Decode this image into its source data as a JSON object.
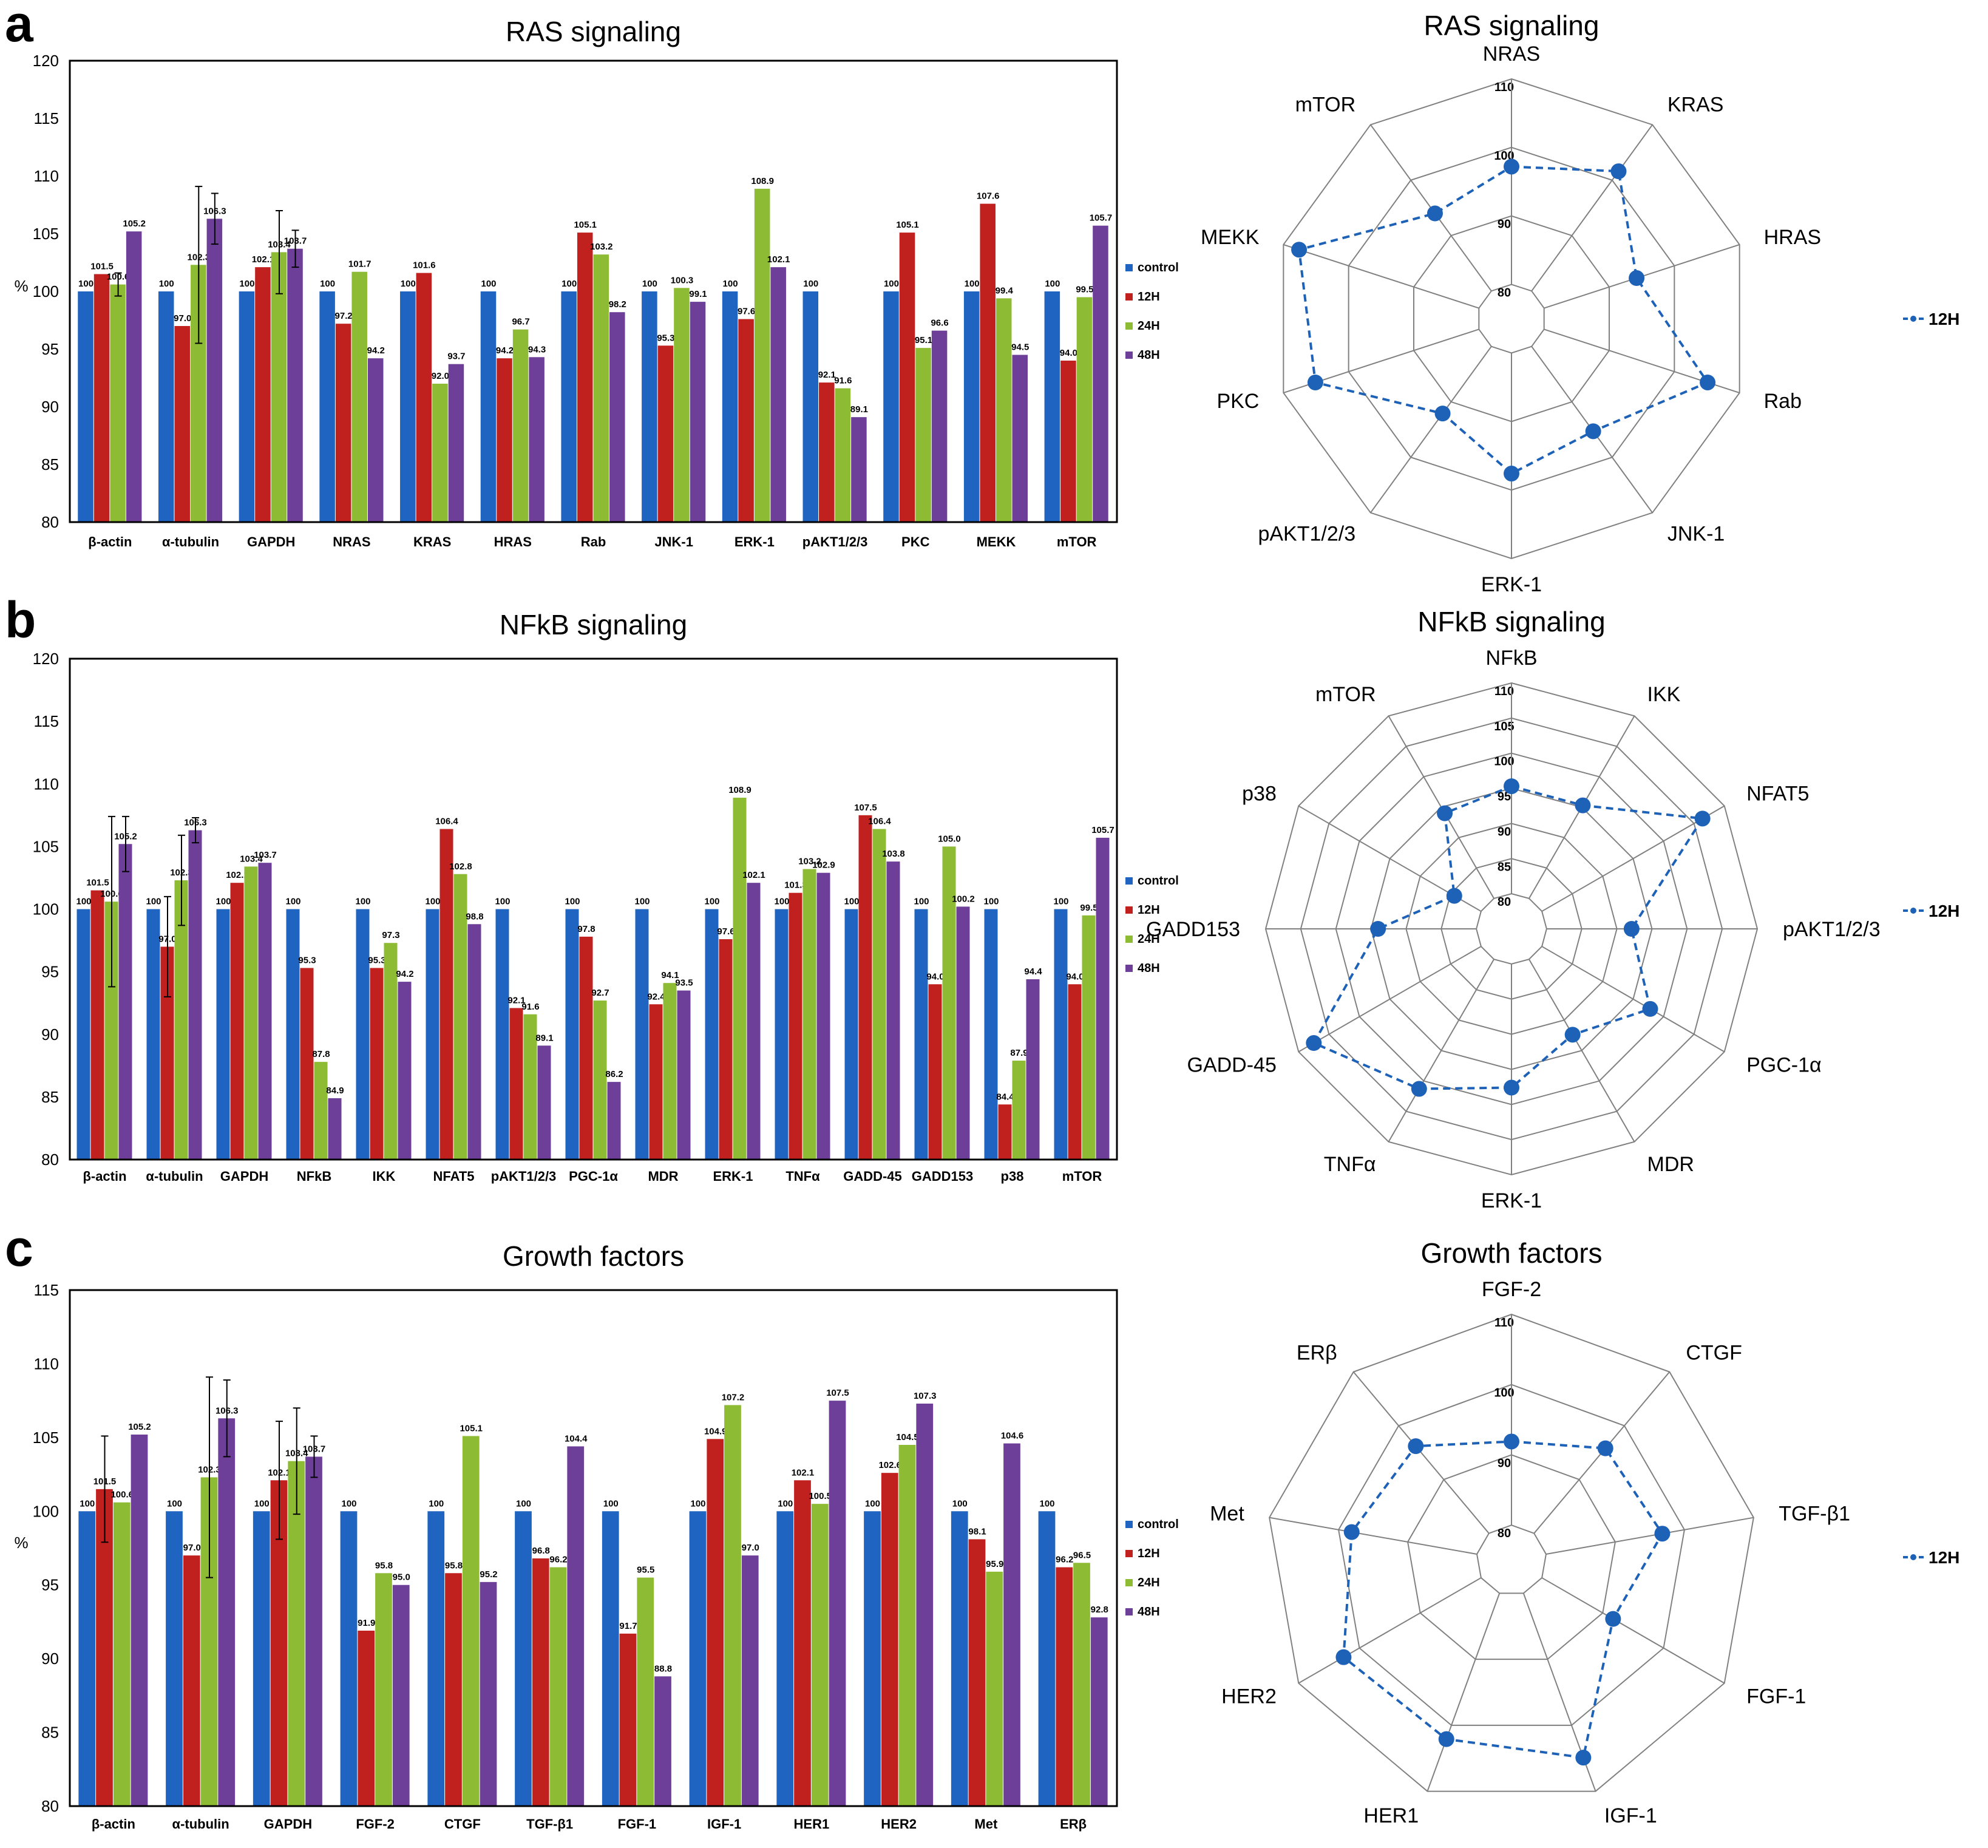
{
  "colors": {
    "control": "#1f64c0",
    "12H": "#c0201e",
    "24H": "#8dbb34",
    "48H": "#6e3f99",
    "radar": "#1e62b8",
    "grid": "#808080"
  },
  "panels": [
    {
      "letter": "a",
      "bar": {
        "type": "bar",
        "title": "RAS signaling",
        "ylabel": "%",
        "ylim": [
          80,
          120
        ],
        "yticks": [
          80,
          85,
          90,
          95,
          100,
          105,
          110,
          115,
          120
        ],
        "categories": [
          "β-actin",
          "α-tubulin",
          "GAPDH",
          "NRAS",
          "KRAS",
          "HRAS",
          "Rab",
          "JNK-1",
          "ERK-1",
          "pAKT1/2/3",
          "PKC",
          "MEKK",
          "mTOR"
        ],
        "series": [
          {
            "name": "control",
            "values": [
              100,
              100,
              100,
              100,
              100,
              100,
              100,
              100,
              100,
              100,
              100,
              100,
              100
            ],
            "labels": [
              "100",
              "100",
              "100",
              "100",
              "100",
              "100",
              "100",
              "100",
              "100",
              "100",
              "100",
              "100",
              "100"
            ]
          },
          {
            "name": "12H",
            "values": [
              101.5,
              97.0,
              102.1,
              97.2,
              101.6,
              94.2,
              105.1,
              95.3,
              97.6,
              92.1,
              105.1,
              107.6,
              94.0
            ],
            "labels": [
              "101.5",
              "97.0",
              "102.1",
              "97.2",
              "101.6",
              "94.2",
              "105.1",
              "95.3",
              "97.6",
              "92.1",
              "105.1",
              "107.6",
              "94.0"
            ]
          },
          {
            "name": "24H",
            "values": [
              100.6,
              102.3,
              103.4,
              101.7,
              92.0,
              96.7,
              103.2,
              100.3,
              108.9,
              91.6,
              95.1,
              99.4,
              99.5
            ],
            "labels": [
              "100.6",
              "102.3",
              "103.4",
              "101.7",
              "92.0",
              "96.7",
              "103.2",
              "100.3",
              "108.9",
              "91.6",
              "95.1",
              "99.4",
              "99.5"
            ]
          },
          {
            "name": "48H",
            "values": [
              105.2,
              106.3,
              103.7,
              94.2,
              93.7,
              94.3,
              98.2,
              99.1,
              102.1,
              89.1,
              96.6,
              94.5,
              105.7
            ],
            "labels": [
              "105.2",
              "106.3",
              "103.7",
              "94.2",
              "93.7",
              "94.3",
              "98.2",
              "99.1",
              "102.1",
              "89.1",
              "96.6",
              "94.5",
              "105.7"
            ]
          }
        ],
        "legend": [
          "control",
          "12H",
          "24H",
          "48H"
        ],
        "error_bars": [
          [
            0,
            2,
            1.0
          ],
          [
            1,
            2,
            6.8
          ],
          [
            1,
            3,
            2.2
          ],
          [
            2,
            2,
            3.6
          ],
          [
            2,
            3,
            1.6
          ]
        ]
      },
      "radar": {
        "type": "radar",
        "title": "RAS signaling",
        "axes": [
          "NRAS",
          "KRAS",
          "HRAS",
          "Rab",
          "JNK-1",
          "ERK-1",
          "pAKT1/2/3",
          "PKC",
          "MEKK",
          "mTOR"
        ],
        "rings": [
          80,
          90,
          100,
          110
        ],
        "range": [
          75,
          110
        ],
        "series": [
          {
            "name": "12H",
            "values": [
              97.2,
              101.6,
              94.2,
              105.1,
              95.3,
              97.6,
              92.1,
              105.1,
              107.6,
              94.0
            ]
          }
        ],
        "legend": "12H"
      }
    },
    {
      "letter": "b",
      "bar": {
        "type": "bar",
        "title": "NFkB signaling",
        "ylabel": "",
        "ylim": [
          80,
          120
        ],
        "yticks": [
          80,
          85,
          90,
          95,
          100,
          105,
          110,
          115,
          120
        ],
        "categories": [
          "β-actin",
          "α-tubulin",
          "GAPDH",
          "NFkB",
          "IKK",
          "NFAT5",
          "pAKT1/2/3",
          "PGC-1α",
          "MDR",
          "ERK-1",
          "TNFα",
          "GADD-45",
          "GADD153",
          "p38",
          "mTOR"
        ],
        "series": [
          {
            "name": "control",
            "values": [
              100,
              100,
              100,
              100,
              100,
              100,
              100,
              100,
              100,
              100,
              100,
              100,
              100,
              100,
              100
            ],
            "labels": [
              "100",
              "100",
              "100",
              "100",
              "100",
              "100",
              "100",
              "100",
              "100",
              "100",
              "100",
              "100",
              "100",
              "100",
              "100"
            ]
          },
          {
            "name": "12H",
            "values": [
              101.5,
              97.0,
              102.1,
              95.3,
              95.3,
              106.4,
              92.1,
              97.8,
              92.4,
              97.6,
              101.3,
              107.5,
              94.0,
              84.4,
              94.0
            ],
            "labels": [
              "101.5",
              "97.0",
              "102.1",
              "95.3",
              "95.3",
              "106.4",
              "92.1",
              "97.8",
              "92.4",
              "97.6",
              "101.3",
              "107.5",
              "94.0",
              "84.4",
              "94.0"
            ]
          },
          {
            "name": "24H",
            "values": [
              100.6,
              102.3,
              103.4,
              87.8,
              97.3,
              102.8,
              91.6,
              92.7,
              94.1,
              108.9,
              103.2,
              106.4,
              105.0,
              87.9,
              99.5
            ],
            "labels": [
              "100.6",
              "102.3",
              "103.4",
              "87.8",
              "97.3",
              "102.8",
              "91.6",
              "92.7",
              "94.1",
              "108.9",
              "103.2",
              "106.4",
              "105.0",
              "87.9",
              "99.5"
            ]
          },
          {
            "name": "48H",
            "values": [
              105.2,
              106.3,
              103.7,
              84.9,
              94.2,
              98.8,
              89.1,
              86.2,
              93.5,
              102.1,
              102.9,
              103.8,
              100.2,
              94.4,
              105.7
            ],
            "labels": [
              "105.2",
              "106.3",
              "103.7",
              "84.9",
              "94.2",
              "98.8",
              "89.1",
              "86.2",
              "93.5",
              "102.1",
              "102.9",
              "103.8",
              "100.2",
              "94.4",
              "105.7"
            ]
          }
        ],
        "legend": [
          "control",
          "12H",
          "24H",
          "48H"
        ],
        "error_bars": [
          [
            0,
            2,
            6.8
          ],
          [
            0,
            3,
            2.2
          ],
          [
            1,
            1,
            4.0
          ],
          [
            1,
            2,
            3.6
          ],
          [
            1,
            3,
            1.0
          ]
        ]
      },
      "radar": {
        "type": "radar",
        "title": "NFkB signaling",
        "axes": [
          "NFkB",
          "IKK",
          "NFAT5",
          "pAKT1/2/3",
          "PGC-1α",
          "MDR",
          "ERK-1",
          "TNFα",
          "GADD-45",
          "GADD153",
          "p38",
          "mTOR"
        ],
        "rings": [
          80,
          85,
          90,
          95,
          100,
          105,
          110
        ],
        "range": [
          75,
          110
        ],
        "series": [
          {
            "name": "12H",
            "values": [
              95.3,
              95.3,
              106.4,
              92.1,
              97.8,
              92.4,
              97.6,
              101.3,
              107.5,
              94.0,
              84.4,
              94.0
            ]
          }
        ],
        "legend": "12H"
      }
    },
    {
      "letter": "c",
      "bar": {
        "type": "bar",
        "title": "Growth factors",
        "ylabel": "%",
        "ylim": [
          80,
          115
        ],
        "yticks": [
          80,
          85,
          90,
          95,
          100,
          105,
          110,
          115
        ],
        "categories": [
          "β-actin",
          "α-tubulin",
          "GAPDH",
          "FGF-2",
          "CTGF",
          "TGF-β1",
          "FGF-1",
          "IGF-1",
          "HER1",
          "HER2",
          "Met",
          "ERβ"
        ],
        "series": [
          {
            "name": "control",
            "values": [
              100,
              100,
              100,
              100,
              100,
              100,
              100,
              100,
              100,
              100,
              100,
              100
            ],
            "labels": [
              "100",
              "100",
              "100",
              "100",
              "100",
              "100",
              "100",
              "100",
              "100",
              "100",
              "100",
              "100"
            ]
          },
          {
            "name": "12H",
            "values": [
              101.5,
              97.0,
              102.1,
              91.9,
              95.8,
              96.8,
              91.7,
              104.9,
              102.1,
              102.6,
              98.1,
              96.2
            ],
            "labels": [
              "101.5",
              "97.0",
              "102.1",
              "91.9",
              "95.8",
              "96.8",
              "91.7",
              "104.9",
              "102.1",
              "102.6",
              "98.1",
              "96.2"
            ]
          },
          {
            "name": "24H",
            "values": [
              100.6,
              102.3,
              103.4,
              95.8,
              105.1,
              96.2,
              95.5,
              107.2,
              100.5,
              104.5,
              95.9,
              96.5
            ],
            "labels": [
              "100.6",
              "102.3",
              "103.4",
              "95.8",
              "105.1",
              "96.2",
              "95.5",
              "107.2",
              "100.5",
              "104.5",
              "95.9",
              "96.5"
            ]
          },
          {
            "name": "48H",
            "values": [
              105.2,
              106.3,
              103.7,
              95.0,
              95.2,
              104.4,
              88.8,
              97.0,
              107.5,
              107.3,
              104.6,
              92.8
            ],
            "labels": [
              "105.2",
              "106.3",
              "103.7",
              "95.0",
              "95.2",
              "104.4",
              "88.8",
              "97.0",
              "107.5",
              "107.3",
              "104.6",
              "92.8"
            ]
          }
        ],
        "legend": [
          "control",
          "12H",
          "24H",
          "48H"
        ],
        "error_bars": [
          [
            0,
            1,
            3.6
          ],
          [
            1,
            2,
            6.8
          ],
          [
            1,
            3,
            2.6
          ],
          [
            2,
            1,
            4.0
          ],
          [
            2,
            2,
            3.6
          ],
          [
            2,
            3,
            1.4
          ]
        ]
      },
      "radar": {
        "type": "radar",
        "title": "Growth factors",
        "axes": [
          "FGF-2",
          "CTGF",
          "TGF-β1",
          "FGF-1",
          "IGF-1",
          "HER1",
          "HER2",
          "Met",
          "ERβ"
        ],
        "rings": [
          80,
          90,
          100,
          110
        ],
        "range": [
          75,
          110
        ],
        "series": [
          {
            "name": "12H",
            "values": [
              91.9,
              95.8,
              96.8,
              91.7,
              104.9,
              102.1,
              102.6,
              98.1,
              96.2
            ]
          }
        ],
        "legend": "12H"
      }
    }
  ]
}
